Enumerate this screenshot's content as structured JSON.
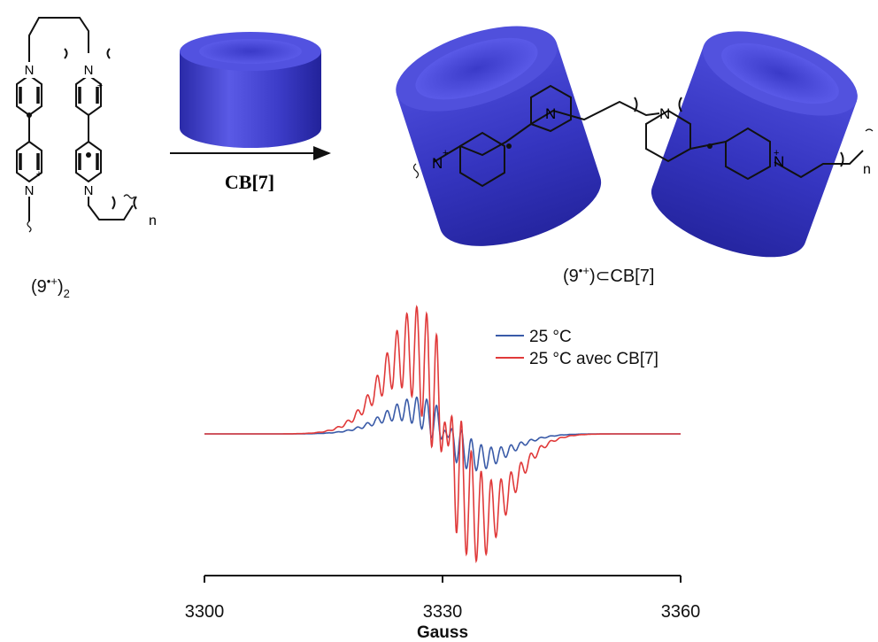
{
  "scheme": {
    "dimer_label": {
      "open": "(9",
      "sup": "•+",
      "close": ")",
      "sub": "2"
    },
    "complex_label": {
      "open": "(9",
      "sup": "•+",
      "close": ")⊂CB[7]"
    },
    "arrow_label": "CB[7]",
    "atoms": {
      "N": "N",
      "plus": "+",
      "repeat": "n"
    },
    "colors": {
      "cylinder_dark": "#2f2fb8",
      "cylinder_light": "#6b6bf0",
      "bond": "#111111"
    }
  },
  "chart_data": {
    "type": "line",
    "xlabel": "Gauss",
    "xlim": [
      3300,
      3360
    ],
    "x_ticks": [
      "3300",
      "3330",
      "3360"
    ],
    "grid": false,
    "legend": {
      "placement": "top-right"
    },
    "series": [
      {
        "name": "25 °C",
        "color": "#3a5ba8",
        "center": 3330.5,
        "peak_amplitude": 0.19,
        "hyperfine_spacing": 1.25,
        "linewidth_gauss": 7.0
      },
      {
        "name": "25 °C avec CB[7]",
        "color": "#e03a3a",
        "center": 3330.5,
        "peak_amplitude": 0.66,
        "hyperfine_spacing": 1.25,
        "linewidth_gauss": 7.0
      }
    ]
  }
}
